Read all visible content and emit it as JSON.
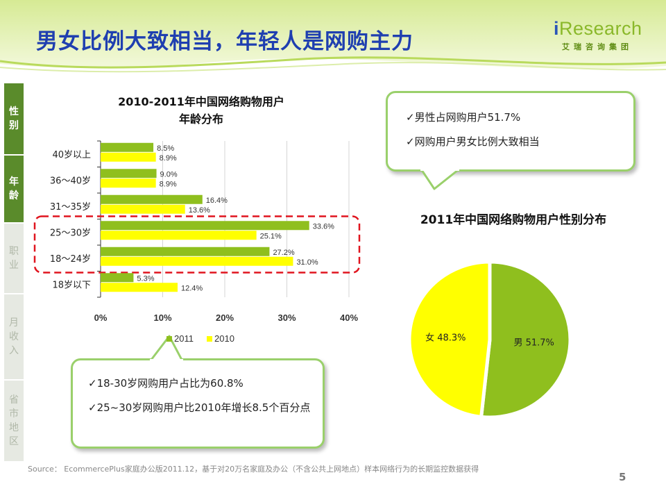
{
  "title": "男女比例大致相当，年轻人是网购主力",
  "logo": {
    "main_i": "i",
    "main_rest": "Research",
    "sub": "艾瑞咨询集团"
  },
  "sidenav": [
    {
      "label": "性别",
      "active": true
    },
    {
      "label": "年龄",
      "active": true
    },
    {
      "label": "职业",
      "active": false
    },
    {
      "label": "月收入",
      "active": false
    },
    {
      "label": "省市地区",
      "active": false
    }
  ],
  "callouts": {
    "top": [
      "✓男性占网购用户51.7%",
      "✓网购用户男女比例大致相当"
    ],
    "bottom": [
      "✓18-30岁网购用户占比为60.8%",
      "✓25~30岁网购用户比2010年增长8.5个百分点"
    ]
  },
  "source": "Source：  EcommercePlus家庭办公版2011.12，基于对20万名家庭及办公（不含公共上网地点）样本网络行为的长期监控数据获得",
  "page_number": "5",
  "chart_data": [
    {
      "type": "bar",
      "orientation": "horizontal",
      "title_line1": "2010-2011年中国网络购物用户",
      "title_line2": "年龄分布",
      "categories": [
        "40岁以上",
        "36～40岁",
        "31～35岁",
        "25～30岁",
        "18～24岁",
        "18岁以下"
      ],
      "series": [
        {
          "name": "2011",
          "color": "#8fbf1e",
          "values": [
            8.5,
            9.0,
            16.4,
            33.6,
            27.2,
            5.3
          ],
          "labels": [
            "8.5%",
            "9.0%",
            "16.4%",
            "33.6%",
            "27.2%",
            "5.3%"
          ]
        },
        {
          "name": "2010",
          "color": "#ffff00",
          "values": [
            8.9,
            8.9,
            13.6,
            25.1,
            31.0,
            12.4
          ],
          "labels": [
            "8.9%",
            "8.9%",
            "13.6%",
            "25.1%",
            "31.0%",
            "12.4%"
          ]
        }
      ],
      "xlim": [
        0,
        40
      ],
      "xticks": [
        "0%",
        "10%",
        "20%",
        "30%",
        "40%"
      ],
      "grid": true,
      "legend": "bottom",
      "highlight_categories": [
        "25～30岁",
        "18～24岁"
      ]
    },
    {
      "type": "pie",
      "title": "2011年中国网络购物用户性别分布",
      "slices": [
        {
          "name": "男",
          "value": 51.7,
          "label": "男 51.7%",
          "color": "#8fbf1e"
        },
        {
          "name": "女",
          "value": 48.3,
          "label": "女 48.3%",
          "color": "#ffff00"
        }
      ]
    }
  ]
}
